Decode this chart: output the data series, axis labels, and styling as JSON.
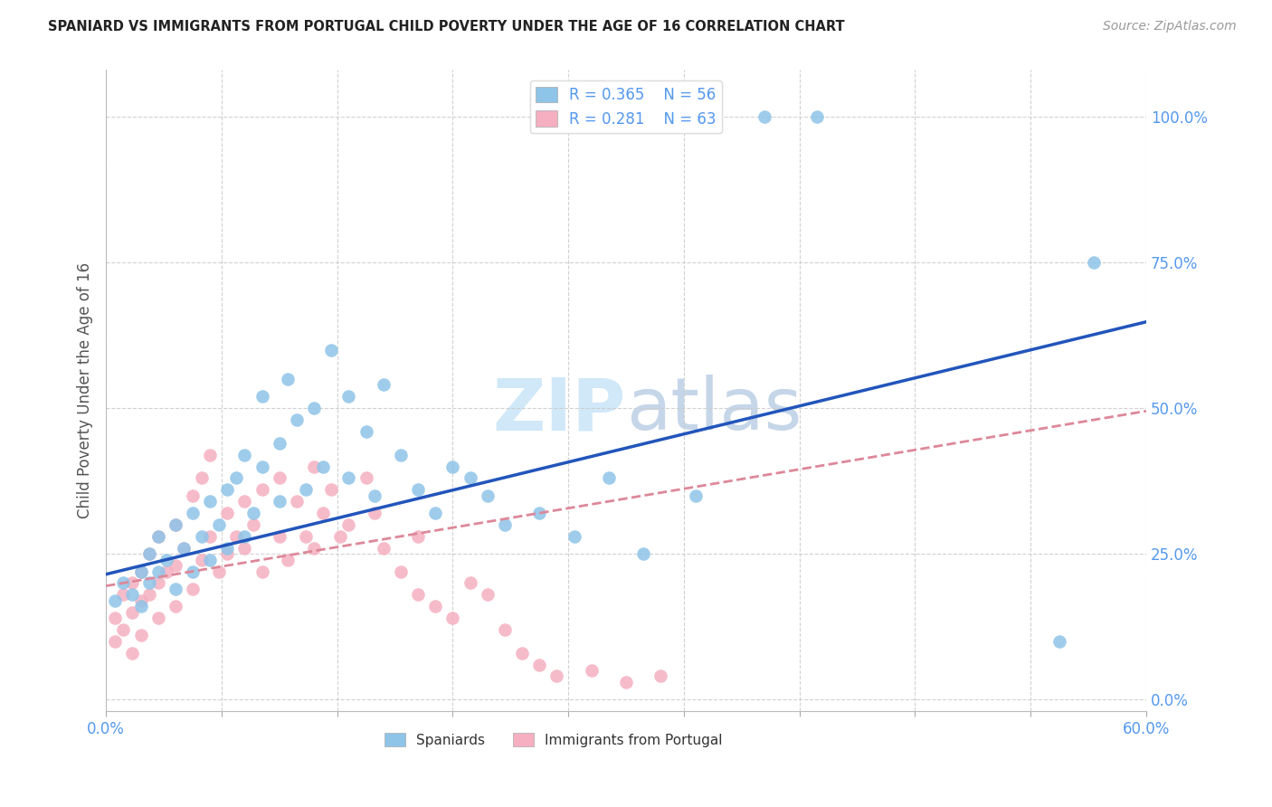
{
  "title": "SPANIARD VS IMMIGRANTS FROM PORTUGAL CHILD POVERTY UNDER THE AGE OF 16 CORRELATION CHART",
  "source": "Source: ZipAtlas.com",
  "ylabel": "Child Poverty Under the Age of 16",
  "xlim": [
    0.0,
    0.6
  ],
  "ylim": [
    -0.02,
    1.08
  ],
  "ytick_vals": [
    0.0,
    0.25,
    0.5,
    0.75,
    1.0
  ],
  "ytick_labels": [
    "0.0%",
    "25.0%",
    "50.0%",
    "75.0%",
    "100.0%"
  ],
  "xtick_vals": [
    0.0,
    0.06667,
    0.13333,
    0.2,
    0.26667,
    0.33333,
    0.4,
    0.46667,
    0.53333,
    0.6
  ],
  "xtick_labels": [
    "0.0%",
    "",
    "",
    "",
    "",
    "",
    "",
    "",
    "",
    "60.0%"
  ],
  "legend_R_blue": "0.365",
  "legend_N_blue": "56",
  "legend_R_pink": "0.281",
  "legend_N_pink": "63",
  "blue_color": "#8ec4e8",
  "pink_color": "#f5afc0",
  "blue_edge_color": "#6aaad4",
  "pink_edge_color": "#e890a8",
  "blue_line_color": "#2255bb",
  "pink_line_color": "#dd8899",
  "watermark_color": "#d0e8f8",
  "blue_trend_x0": 0.0,
  "blue_trend_y0": 0.215,
  "blue_trend_x1": 0.6,
  "blue_trend_y1": 0.648,
  "pink_trend_x0": 0.0,
  "pink_trend_y0": 0.195,
  "pink_trend_x1": 0.6,
  "pink_trend_y1": 0.495,
  "blue_x": [
    0.005,
    0.01,
    0.015,
    0.02,
    0.02,
    0.025,
    0.025,
    0.03,
    0.03,
    0.035,
    0.04,
    0.04,
    0.045,
    0.05,
    0.05,
    0.055,
    0.06,
    0.06,
    0.065,
    0.07,
    0.07,
    0.075,
    0.08,
    0.08,
    0.085,
    0.09,
    0.09,
    0.1,
    0.1,
    0.105,
    0.11,
    0.115,
    0.12,
    0.125,
    0.13,
    0.14,
    0.14,
    0.15,
    0.155,
    0.16,
    0.17,
    0.18,
    0.19,
    0.2,
    0.21,
    0.22,
    0.23,
    0.25,
    0.27,
    0.29,
    0.31,
    0.34,
    0.38,
    0.41,
    0.55,
    0.57
  ],
  "blue_y": [
    0.17,
    0.2,
    0.18,
    0.22,
    0.16,
    0.25,
    0.2,
    0.28,
    0.22,
    0.24,
    0.3,
    0.19,
    0.26,
    0.32,
    0.22,
    0.28,
    0.34,
    0.24,
    0.3,
    0.36,
    0.26,
    0.38,
    0.28,
    0.42,
    0.32,
    0.4,
    0.52,
    0.44,
    0.34,
    0.55,
    0.48,
    0.36,
    0.5,
    0.4,
    0.6,
    0.38,
    0.52,
    0.46,
    0.35,
    0.54,
    0.42,
    0.36,
    0.32,
    0.4,
    0.38,
    0.35,
    0.3,
    0.32,
    0.28,
    0.38,
    0.25,
    0.35,
    1.0,
    1.0,
    0.1,
    0.75
  ],
  "pink_x": [
    0.005,
    0.005,
    0.01,
    0.01,
    0.015,
    0.015,
    0.015,
    0.02,
    0.02,
    0.02,
    0.025,
    0.025,
    0.03,
    0.03,
    0.03,
    0.035,
    0.04,
    0.04,
    0.04,
    0.045,
    0.05,
    0.05,
    0.055,
    0.055,
    0.06,
    0.06,
    0.065,
    0.07,
    0.07,
    0.075,
    0.08,
    0.08,
    0.085,
    0.09,
    0.09,
    0.1,
    0.1,
    0.105,
    0.11,
    0.115,
    0.12,
    0.12,
    0.125,
    0.13,
    0.135,
    0.14,
    0.15,
    0.155,
    0.16,
    0.17,
    0.18,
    0.18,
    0.19,
    0.2,
    0.21,
    0.22,
    0.23,
    0.24,
    0.25,
    0.26,
    0.28,
    0.3,
    0.32
  ],
  "pink_y": [
    0.14,
    0.1,
    0.18,
    0.12,
    0.2,
    0.15,
    0.08,
    0.22,
    0.17,
    0.11,
    0.25,
    0.18,
    0.28,
    0.2,
    0.14,
    0.22,
    0.3,
    0.23,
    0.16,
    0.26,
    0.35,
    0.19,
    0.38,
    0.24,
    0.42,
    0.28,
    0.22,
    0.32,
    0.25,
    0.28,
    0.34,
    0.26,
    0.3,
    0.36,
    0.22,
    0.38,
    0.28,
    0.24,
    0.34,
    0.28,
    0.4,
    0.26,
    0.32,
    0.36,
    0.28,
    0.3,
    0.38,
    0.32,
    0.26,
    0.22,
    0.18,
    0.28,
    0.16,
    0.14,
    0.2,
    0.18,
    0.12,
    0.08,
    0.06,
    0.04,
    0.05,
    0.03,
    0.04
  ]
}
